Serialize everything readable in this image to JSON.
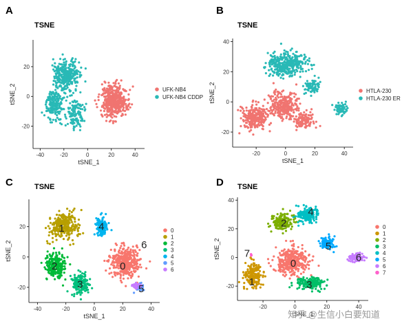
{
  "watermark": "知乎 @生信小白要知道",
  "chart_data": [
    {
      "type": "scatter",
      "letter": "A",
      "title": "TSNE",
      "xlabel": "tSNE_1",
      "ylabel": "tSNE_2",
      "xlim": [
        -46,
        48
      ],
      "ylim": [
        -35,
        38
      ],
      "xticks": [
        -40,
        -20,
        0,
        20,
        40
      ],
      "yticks": [
        -20,
        0,
        20
      ],
      "legend": {
        "position": "right"
      },
      "series": [
        {
          "name": "UFK-NB4",
          "color": "#F07470"
        },
        {
          "name": "UFK-NB4 CDDP",
          "color": "#29B9B6"
        }
      ],
      "clusters": [
        {
          "series": 1,
          "cx": -18,
          "cy": 14,
          "sx": 10,
          "sy": 10,
          "n": 300
        },
        {
          "series": 1,
          "cx": -28,
          "cy": -5,
          "sx": 7,
          "sy": 9,
          "n": 200
        },
        {
          "series": 1,
          "cx": -10,
          "cy": -12,
          "sx": 7,
          "sy": 8,
          "n": 120
        },
        {
          "series": 0,
          "cx": 22,
          "cy": -3,
          "sx": 10,
          "sy": 10,
          "n": 450
        }
      ]
    },
    {
      "type": "scatter",
      "letter": "B",
      "title": "TSNE",
      "xlabel": "tSNE_1",
      "ylabel": "tSNE_2",
      "xlim": [
        -36,
        46
      ],
      "ylim": [
        -30,
        42
      ],
      "xticks": [
        -20,
        0,
        20,
        40
      ],
      "yticks": [
        -20,
        0,
        20,
        40
      ],
      "legend": {
        "position": "right"
      },
      "series": [
        {
          "name": "HTLA-230",
          "color": "#F07470"
        },
        {
          "name": "HTLA-230 ER",
          "color": "#29B9B6"
        }
      ],
      "clusters": [
        {
          "series": 1,
          "cx": 0,
          "cy": 25,
          "sx": 12,
          "sy": 7,
          "n": 350
        },
        {
          "series": 1,
          "cx": 18,
          "cy": 10,
          "sx": 5,
          "sy": 5,
          "n": 80
        },
        {
          "series": 1,
          "cx": 38,
          "cy": -5,
          "sx": 4,
          "sy": 3,
          "n": 60
        },
        {
          "series": 0,
          "cx": -20,
          "cy": -10,
          "sx": 8,
          "sy": 8,
          "n": 250
        },
        {
          "series": 0,
          "cx": -2,
          "cy": -2,
          "sx": 9,
          "sy": 8,
          "n": 250
        },
        {
          "series": 0,
          "cx": 12,
          "cy": -12,
          "sx": 6,
          "sy": 5,
          "n": 120
        }
      ]
    },
    {
      "type": "scatter",
      "letter": "C",
      "title": "TSNE",
      "xlabel": "tSNE_1",
      "ylabel": "tSNE_2",
      "xlim": [
        -46,
        46
      ],
      "ylim": [
        -30,
        38
      ],
      "xticks": [
        -40,
        -20,
        0,
        20,
        40
      ],
      "yticks": [
        -20,
        0,
        20
      ],
      "legend": {
        "position": "right"
      },
      "series": [
        {
          "name": "0",
          "color": "#F8766D"
        },
        {
          "name": "1",
          "color": "#B79F00"
        },
        {
          "name": "2",
          "color": "#00BA38"
        },
        {
          "name": "3",
          "color": "#00BF7D"
        },
        {
          "name": "4",
          "color": "#00B4EF"
        },
        {
          "name": "5",
          "color": "#619CFF"
        },
        {
          "name": "6",
          "color": "#C77CFF"
        }
      ],
      "clusters": [
        {
          "series": 0,
          "cx": 22,
          "cy": -3,
          "sx": 10,
          "sy": 9,
          "n": 400
        },
        {
          "series": 1,
          "cx": -22,
          "cy": 20,
          "sx": 9,
          "sy": 8,
          "n": 300
        },
        {
          "series": 2,
          "cx": -27,
          "cy": -6,
          "sx": 7,
          "sy": 7,
          "n": 250
        },
        {
          "series": 3,
          "cx": -10,
          "cy": -17,
          "sx": 6,
          "sy": 6,
          "n": 170
        },
        {
          "series": 4,
          "cx": 5,
          "cy": 20,
          "sx": 4,
          "sy": 6,
          "n": 110
        },
        {
          "series": 5,
          "cx": 32,
          "cy": -20,
          "sx": 3,
          "sy": 2.5,
          "n": 40
        },
        {
          "series": 6,
          "cx": 30,
          "cy": -19,
          "sx": 3,
          "sy": 2,
          "n": 30
        }
      ],
      "labels": [
        {
          "text": "0",
          "x": 20,
          "y": -6
        },
        {
          "text": "1",
          "x": -23,
          "y": 19
        },
        {
          "text": "2",
          "x": -28,
          "y": -6
        },
        {
          "text": "3",
          "x": -10,
          "y": -18
        },
        {
          "text": "4",
          "x": 5,
          "y": 20
        },
        {
          "text": "5",
          "x": 33,
          "y": -21
        },
        {
          "text": "6",
          "x": 35,
          "y": 8
        }
      ]
    },
    {
      "type": "scatter",
      "letter": "D",
      "title": "TSNE",
      "xlabel": "tSNE_1",
      "ylabel": "tSNE_2",
      "xlim": [
        -36,
        46
      ],
      "ylim": [
        -30,
        42
      ],
      "xticks": [
        -20,
        0,
        20,
        40
      ],
      "yticks": [
        -20,
        0,
        20,
        40
      ],
      "legend": {
        "position": "right"
      },
      "series": [
        {
          "name": "0",
          "color": "#F8766D"
        },
        {
          "name": "1",
          "color": "#CD9600"
        },
        {
          "name": "2",
          "color": "#7CAE00"
        },
        {
          "name": "3",
          "color": "#00BE67"
        },
        {
          "name": "4",
          "color": "#00BFC4"
        },
        {
          "name": "5",
          "color": "#00A9FF"
        },
        {
          "name": "6",
          "color": "#C77CFF"
        },
        {
          "name": "7",
          "color": "#FF61CC"
        }
      ],
      "clusters": [
        {
          "series": 0,
          "cx": -2,
          "cy": -3,
          "sx": 9,
          "sy": 8,
          "n": 350
        },
        {
          "series": 1,
          "cx": -26,
          "cy": -12,
          "sx": 5,
          "sy": 8,
          "n": 200
        },
        {
          "series": 2,
          "cx": -8,
          "cy": 25,
          "sx": 6,
          "sy": 5,
          "n": 150
        },
        {
          "series": 3,
          "cx": 10,
          "cy": -18,
          "sx": 8,
          "sy": 4,
          "n": 180
        },
        {
          "series": 4,
          "cx": 8,
          "cy": 30,
          "sx": 6,
          "sy": 5,
          "n": 150
        },
        {
          "series": 5,
          "cx": 20,
          "cy": 10,
          "sx": 4,
          "sy": 4,
          "n": 100
        },
        {
          "series": 6,
          "cx": 38,
          "cy": 0,
          "sx": 4,
          "sy": 3,
          "n": 90
        },
        {
          "series": 7,
          "cx": -28,
          "cy": 2,
          "sx": 1,
          "sy": 1,
          "n": 4
        }
      ],
      "labels": [
        {
          "text": "0",
          "x": -1,
          "y": -4
        },
        {
          "text": "1",
          "x": -27,
          "y": -17
        },
        {
          "text": "2",
          "x": -7,
          "y": 24
        },
        {
          "text": "3",
          "x": 9,
          "y": -19
        },
        {
          "text": "4",
          "x": 10,
          "y": 32
        },
        {
          "text": "5",
          "x": 21,
          "y": 8
        },
        {
          "text": "6",
          "x": 40,
          "y": 0
        },
        {
          "text": "7",
          "x": -30,
          "y": 3
        }
      ]
    }
  ]
}
